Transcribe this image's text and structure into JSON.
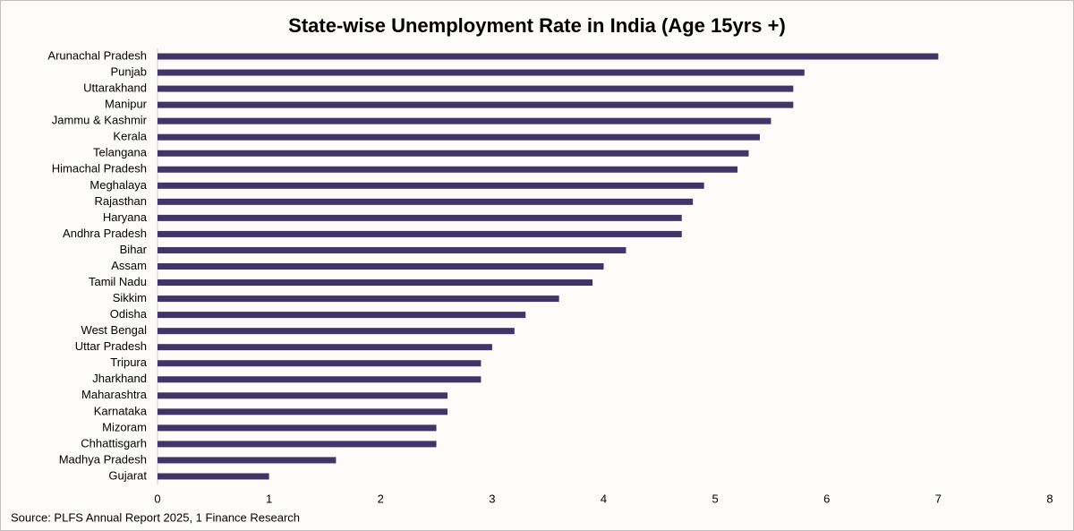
{
  "chart_data": {
    "type": "hbar",
    "title": "State-wise Unemployment Rate in India (Age 15yrs +)",
    "source": "Source: PLFS Annual Report 2025, 1 Finance Research",
    "categories": [
      "Arunachal Pradesh",
      "Punjab",
      "Uttarakhand",
      "Manipur",
      "Jammu & Kashmir",
      "Kerala",
      "Telangana",
      "Himachal Pradesh",
      "Meghalaya",
      "Rajasthan",
      "Haryana",
      "Andhra Pradesh",
      "Bihar",
      "Assam",
      "Tamil Nadu",
      "Sikkim",
      "Odisha",
      "West Bengal",
      "Uttar Pradesh",
      "Tripura",
      "Jharkhand",
      "Maharashtra",
      "Karnataka",
      "Mizoram",
      "Chhattisgarh",
      "Madhya Pradesh",
      "Gujarat"
    ],
    "values": [
      7.0,
      5.8,
      5.7,
      5.7,
      5.5,
      5.4,
      5.3,
      5.2,
      4.9,
      4.8,
      4.7,
      4.7,
      4.2,
      4.0,
      3.9,
      3.6,
      3.3,
      3.2,
      3.0,
      2.9,
      2.9,
      2.6,
      2.6,
      2.5,
      2.5,
      1.6,
      1.0
    ],
    "color": "#3f3566",
    "xlim": [
      0,
      8
    ],
    "xticks": [
      0,
      1,
      2,
      3,
      4,
      5,
      6,
      7,
      8
    ],
    "grid": false
  }
}
